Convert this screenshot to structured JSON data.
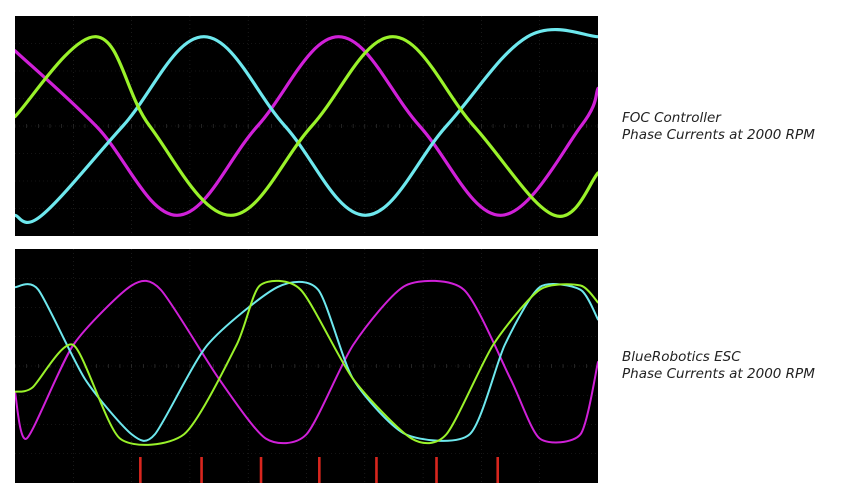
{
  "captions": {
    "top": {
      "line1": "FOC Controller",
      "line2": "Phase Currents at 2000 RPM"
    },
    "bottom": {
      "line1": "BlueRobotics ESC",
      "line2": "Phase Currents at 2000 RPM"
    }
  },
  "colors": {
    "phase_magenta": "#d020d8",
    "phase_cyan": "#6ee8ee",
    "phase_green": "#9af22a",
    "marker_red": "#d8261e",
    "grid": "#2a2a2a",
    "background": "#000000"
  },
  "chart_data": [
    {
      "type": "line",
      "title": "FOC Controller Phase Currents at 2000 RPM",
      "xlabel": "",
      "ylabel": "",
      "grid": true,
      "legend": "none",
      "xlim": [
        0,
        100
      ],
      "ylim": [
        -1,
        1
      ],
      "period": 55.5,
      "series": [
        {
          "color": "#d020d8",
          "x": [
            0,
            13.9,
            27.8,
            41.6,
            55.5,
            69.4,
            83.3,
            97.1,
            100
          ],
          "y": [
            0.8,
            0.0,
            -0.95,
            0.0,
            0.95,
            0.0,
            -0.95,
            0.0,
            0.4
          ]
        },
        {
          "color": "#6ee8ee",
          "x": [
            0,
            4.6,
            18.5,
            32.4,
            46.3,
            60.1,
            74.0,
            87.9,
            100
          ],
          "y": [
            -0.95,
            -0.95,
            0.0,
            0.95,
            0.0,
            -0.95,
            0.0,
            0.95,
            0.95
          ]
        },
        {
          "color": "#9af22a",
          "x": [
            0,
            13.9,
            23.1,
            37.0,
            50.9,
            64.8,
            78.7,
            92.5,
            100
          ],
          "y": [
            0.1,
            0.95,
            0.0,
            -0.95,
            0.0,
            0.95,
            0.0,
            -0.95,
            -0.5
          ]
        }
      ]
    },
    {
      "type": "line",
      "title": "BlueRobotics ESC Phase Currents at 2000 RPM",
      "xlabel": "",
      "ylabel": "",
      "grid": true,
      "legend": "none",
      "xlim": [
        0,
        100
      ],
      "ylim": [
        -1,
        1
      ],
      "period": 52,
      "series": [
        {
          "color": "#d020d8",
          "x": [
            0,
            2,
            10,
            20,
            25,
            35,
            43,
            50,
            58,
            67,
            77,
            85,
            90,
            97,
            100
          ],
          "y": [
            -0.35,
            -0.9,
            0.2,
            0.9,
            0.85,
            -0.2,
            -0.9,
            -0.85,
            0.2,
            0.9,
            0.85,
            -0.2,
            -0.9,
            -0.85,
            0.0
          ]
        },
        {
          "color": "#6ee8ee",
          "x": [
            0,
            4,
            12,
            20,
            24,
            33,
            45,
            52,
            58,
            67,
            78,
            84,
            90,
            97,
            100
          ],
          "y": [
            0.88,
            0.85,
            -0.2,
            -0.85,
            -0.85,
            0.2,
            0.88,
            0.85,
            -0.2,
            -0.85,
            -0.85,
            0.2,
            0.88,
            0.85,
            0.5
          ]
        },
        {
          "color": "#9af22a",
          "x": [
            0,
            3,
            10,
            18,
            29,
            38,
            42,
            49,
            58,
            68,
            74,
            82,
            90,
            97,
            100
          ],
          "y": [
            -0.35,
            -0.3,
            0.2,
            -0.9,
            -0.85,
            0.2,
            0.9,
            0.85,
            -0.2,
            -0.9,
            -0.85,
            0.2,
            0.85,
            0.9,
            0.7
          ]
        }
      ],
      "markers_x": [
        21.5,
        32,
        42.2,
        52.2,
        62,
        72.3,
        82.8
      ]
    }
  ]
}
